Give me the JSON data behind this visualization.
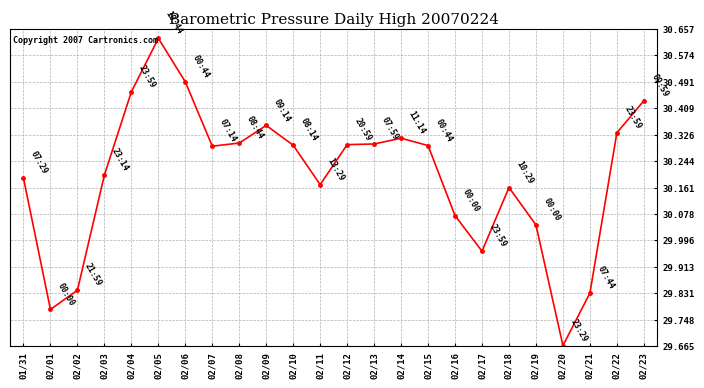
{
  "title": "Barometric Pressure Daily High 20070224",
  "copyright": "Copyright 2007 Cartronics.com",
  "x_labels": [
    "01/31",
    "02/01",
    "02/02",
    "02/03",
    "02/04",
    "02/05",
    "02/06",
    "02/07",
    "02/08",
    "02/09",
    "02/10",
    "02/11",
    "02/12",
    "02/13",
    "02/14",
    "02/15",
    "02/16",
    "02/17",
    "02/18",
    "02/19",
    "02/20",
    "02/21",
    "02/22",
    "02/23"
  ],
  "y_values": [
    30.19,
    29.78,
    29.84,
    30.2,
    30.46,
    30.627,
    30.491,
    30.29,
    30.3,
    30.355,
    30.293,
    30.17,
    30.295,
    30.297,
    30.315,
    30.292,
    30.073,
    29.962,
    30.161,
    30.044,
    29.667,
    29.831,
    30.332,
    30.432
  ],
  "point_labels": [
    "07:29",
    "00:00",
    "21:59",
    "23:14",
    "23:59",
    "10:44",
    "00:44",
    "07:14",
    "08:44",
    "09:14",
    "08:14",
    "13:29",
    "20:59",
    "07:59",
    "11:14",
    "00:44",
    "00:00",
    "23:59",
    "10:29",
    "00:00",
    "23:29",
    "07:44",
    "23:59",
    "09:59"
  ],
  "y_ticks": [
    29.665,
    29.748,
    29.831,
    29.913,
    29.996,
    30.078,
    30.161,
    30.244,
    30.326,
    30.409,
    30.491,
    30.574,
    30.657
  ],
  "line_color": "red",
  "marker_color": "red",
  "bg_color": "white",
  "grid_color": "#aaaaaa",
  "title_fontsize": 11,
  "tick_fontsize": 6.5,
  "point_label_fontsize": 6,
  "copyright_fontsize": 6
}
